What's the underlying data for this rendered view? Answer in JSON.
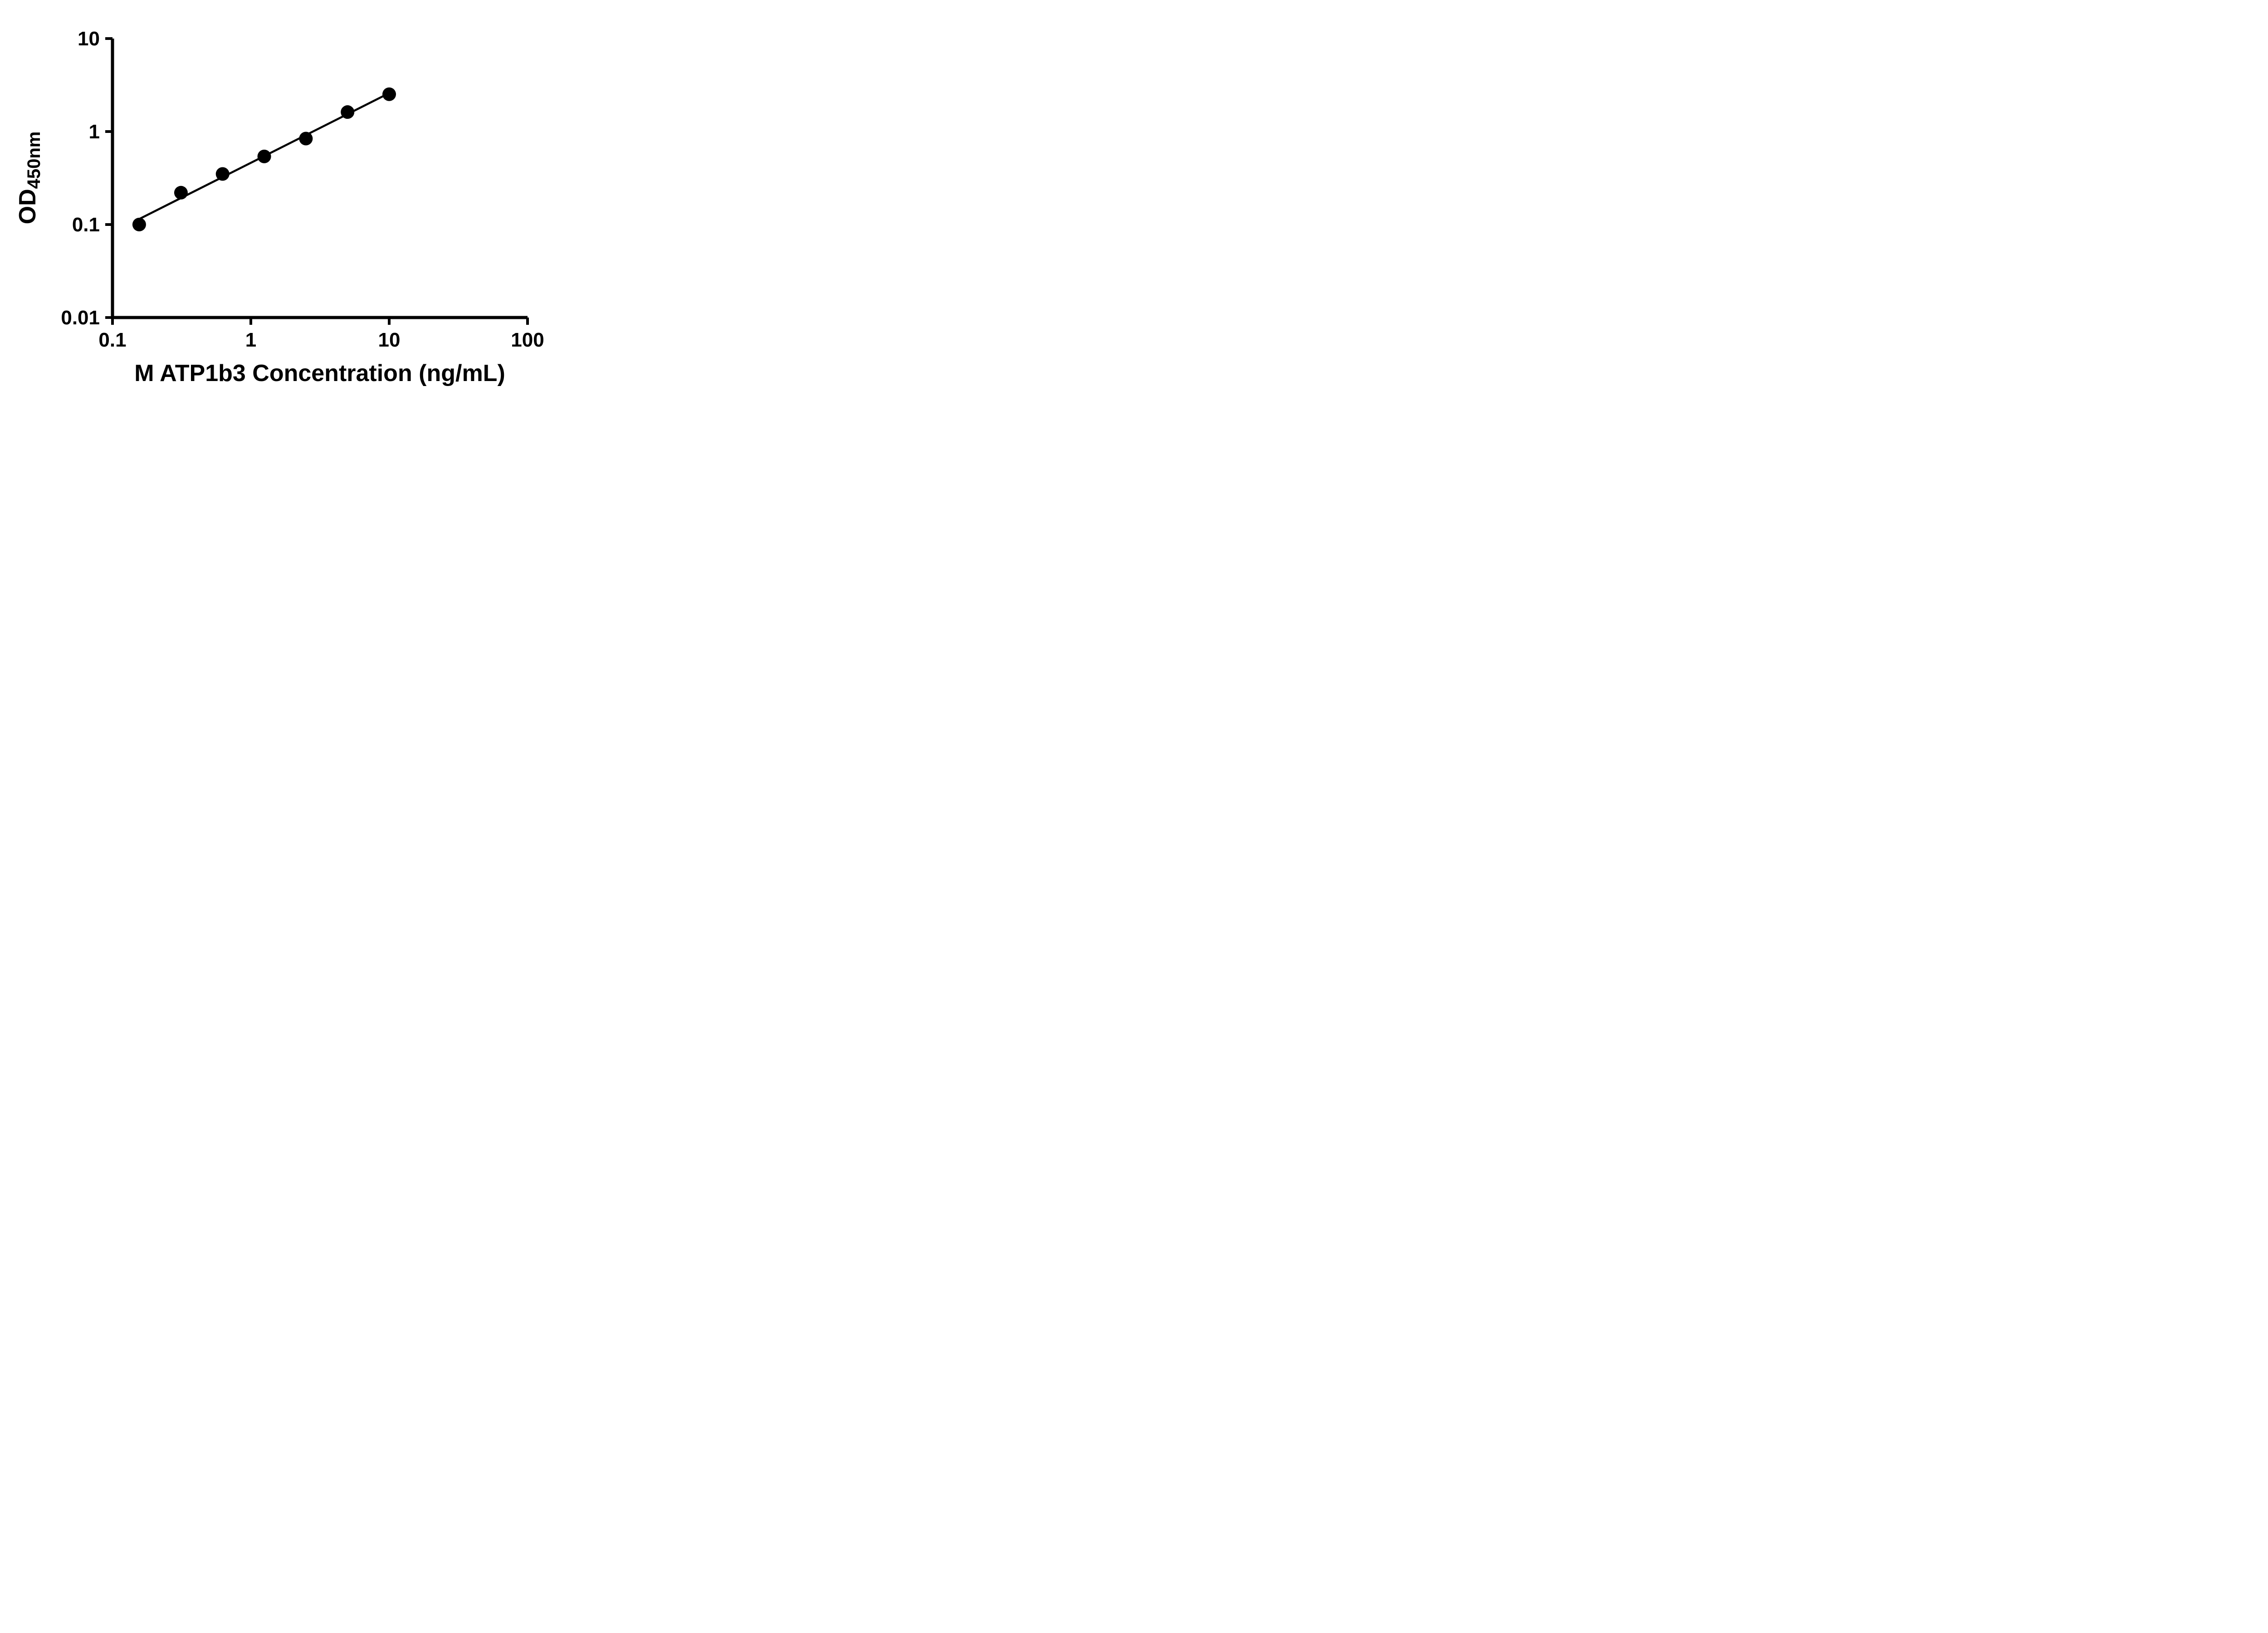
{
  "figure": {
    "background": "#ffffff"
  },
  "chart_data": {
    "type": "scatter",
    "title": "",
    "xlabel": "M ATP1b3 Concentration (ng/mL)",
    "ylabel": {
      "main": "OD",
      "sub": "450nm"
    },
    "x_scale": "log",
    "y_scale": "log",
    "xlim": [
      0.1,
      100
    ],
    "ylim": [
      0.01,
      10
    ],
    "x_ticks": [
      {
        "value": 0.1,
        "label": "0.1"
      },
      {
        "value": 1,
        "label": "1"
      },
      {
        "value": 10,
        "label": "10"
      },
      {
        "value": 100,
        "label": "100"
      }
    ],
    "y_ticks": [
      {
        "value": 0.01,
        "label": "0.01"
      },
      {
        "value": 0.1,
        "label": "0.1"
      },
      {
        "value": 1,
        "label": "1"
      },
      {
        "value": 10,
        "label": "10"
      }
    ],
    "grid": false,
    "legend": null,
    "axis_color": "#000000",
    "series": [
      {
        "marker": "circle",
        "color": "#000000",
        "points": [
          {
            "x": 0.156,
            "y": 0.1
          },
          {
            "x": 0.3125,
            "y": 0.22
          },
          {
            "x": 0.625,
            "y": 0.35
          },
          {
            "x": 1.25,
            "y": 0.54
          },
          {
            "x": 2.5,
            "y": 0.84
          },
          {
            "x": 5.0,
            "y": 1.62
          },
          {
            "x": 10.0,
            "y": 2.52
          }
        ],
        "trendline": {
          "type": "log-log-linear-fit",
          "x_start": 0.156,
          "x_end": 10.0,
          "color": "#000000"
        }
      }
    ]
  }
}
